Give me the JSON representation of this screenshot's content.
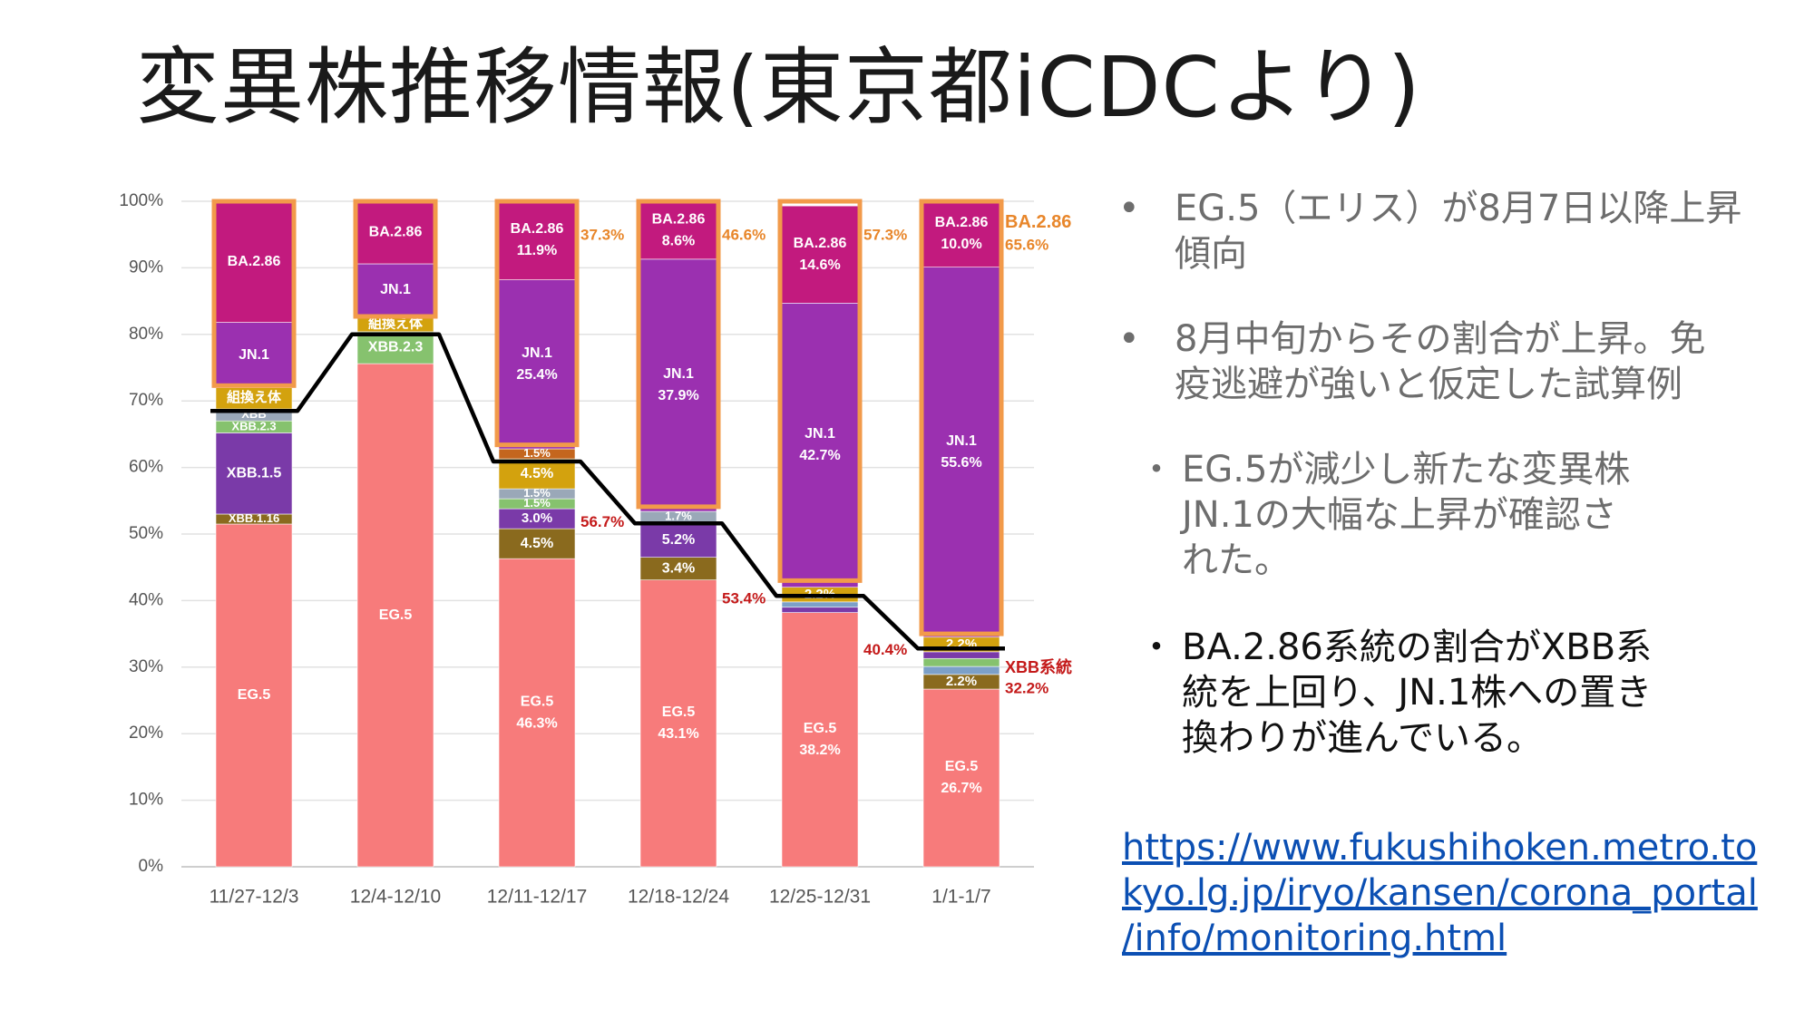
{
  "slide": {
    "title": "変異株推移情報(東京都iCDCより)"
  },
  "notes": {
    "bullet1": [
      "EG.5（エリス）が8月7日以降上昇",
      "傾向"
    ],
    "bullet2": [
      "8月中旬からその割合が上昇。免",
      "疫逃避が強いと仮定した試算例"
    ],
    "point1": [
      "EG.5が減少し新たな変異株",
      " JN.1の大幅な上昇が確認さ",
      "れた。"
    ],
    "point2": [
      "BA.2.86系統の割合がXBB系",
      "統を上回り、JN.1株への置き",
      "換わりが進んでいる。"
    ],
    "bullet_char": "•",
    "point_char": "・"
  },
  "source_url": [
    "https://www.fukushihoken.metro.to",
    "kyo.lg.jp/iryo/kansen/corona_portal",
    "/info/monitoring.html"
  ],
  "chart_data": {
    "type": "bar",
    "stacked": true,
    "categories": [
      "11/27-12/3",
      "12/4-12/10",
      "12/11-12/17",
      "12/18-12/24",
      "12/25-12/31",
      "1/1-1/7"
    ],
    "y_ticks": [
      "0%",
      "10%",
      "20%",
      "30%",
      "40%",
      "50%",
      "60%",
      "70%",
      "80%",
      "90%",
      "100%"
    ],
    "ylim": [
      0,
      100
    ],
    "colors": {
      "EG.5": "#f77b7b",
      "XBB.1.16": "#8a6a1e",
      "XBB.1.5": "#7a3aa8",
      "XBB.2.3": "#86c26e",
      "XBB": "#9aa8b8",
      "XBB-other": "#7ca0c8",
      "組換え体": "#d3a20e",
      "組換え体-2": "#c4661e",
      "JN.1": "#9b30b0",
      "BA.2.86": "#c21a7e",
      "highlight": "#f29a4a",
      "trend": "#000000"
    },
    "bars": [
      {
        "segments": [
          {
            "name": "EG.5",
            "value": 51.5,
            "label": "EG.5"
          },
          {
            "name": "XBB.1.16",
            "value": 1.5,
            "label": "XBB.1.16"
          },
          {
            "name": "XBB.1.5",
            "value": 12.2,
            "label": "XBB.1.5"
          },
          {
            "name": "XBB.2.3",
            "value": 1.8,
            "label": "XBB.2.3"
          },
          {
            "name": "XBB",
            "value": 1.8,
            "label": "XBB"
          },
          {
            "name": "組換え体",
            "value": 3.2,
            "label": "組換え体"
          },
          {
            "name": "JN.1",
            "value": 9.8,
            "label": "JN.1"
          },
          {
            "name": "BA.2.86",
            "value": 18.2,
            "label": "BA.2.86"
          }
        ]
      },
      {
        "segments": [
          {
            "name": "EG.5",
            "value": 75.6,
            "label": "EG.5"
          },
          {
            "name": "XBB.2.3",
            "value": 4.8,
            "label": "XBB.2.3"
          },
          {
            "name": "組換え体",
            "value": 2.3,
            "label": "組換え体"
          },
          {
            "name": "JN.1",
            "value": 7.9,
            "label": "JN.1"
          },
          {
            "name": "BA.2.86",
            "value": 9.4,
            "label": "BA.2.86"
          }
        ]
      },
      {
        "segments": [
          {
            "name": "EG.5",
            "value": 46.3,
            "label": "EG.5",
            "label2": "46.3%"
          },
          {
            "name": "XBB.1.16",
            "value": 4.5,
            "label": "4.5%"
          },
          {
            "name": "XBB.1.5",
            "value": 3.0,
            "label": "3.0%"
          },
          {
            "name": "XBB.2.3",
            "value": 1.5,
            "label": "1.5%"
          },
          {
            "name": "XBB",
            "value": 1.5,
            "label": "1.5%"
          },
          {
            "name": "組換え体",
            "value": 4.5,
            "label": "4.5%"
          },
          {
            "name": "組換え体-2",
            "value": 1.5,
            "label": "1.5%"
          },
          {
            "name": "JN.1",
            "value": 25.4,
            "label": "JN.1",
            "label2": "25.4%"
          },
          {
            "name": "BA.2.86",
            "value": 11.9,
            "label": "BA.2.86",
            "label2": "11.9%"
          }
        ]
      },
      {
        "segments": [
          {
            "name": "EG.5",
            "value": 43.1,
            "label": "EG.5",
            "label2": "43.1%"
          },
          {
            "name": "XBB.1.16",
            "value": 3.4,
            "label": "3.4%"
          },
          {
            "name": "XBB.1.5",
            "value": 5.2,
            "label": "5.2%"
          },
          {
            "name": "XBB",
            "value": 1.7,
            "label": "1.7%"
          },
          {
            "name": "JN.1",
            "value": 37.9,
            "label": "JN.1",
            "label2": "37.9%"
          },
          {
            "name": "BA.2.86",
            "value": 8.6,
            "label": "BA.2.86",
            "label2": "8.6%"
          }
        ]
      },
      {
        "segments": [
          {
            "name": "EG.5",
            "value": 38.2,
            "label": "EG.5",
            "label2": "38.2%"
          },
          {
            "name": "XBB.1.5",
            "value": 0.8,
            "label": ""
          },
          {
            "name": "XBB-other",
            "value": 0.8,
            "label": ""
          },
          {
            "name": "組換え体",
            "value": 2.2,
            "label": "2.2%"
          },
          {
            "name": "JN.1",
            "value": 42.7,
            "label": "JN.1",
            "label2": "42.7%"
          },
          {
            "name": "BA.2.86",
            "value": 14.6,
            "label": "BA.2.86",
            "label2": "14.6%"
          }
        ]
      },
      {
        "segments": [
          {
            "name": "EG.5",
            "value": 26.7,
            "label": "EG.5",
            "label2": "26.7%"
          },
          {
            "name": "XBB.1.16",
            "value": 2.2,
            "label": "2.2%"
          },
          {
            "name": "XBB-other",
            "value": 1.2,
            "label": ""
          },
          {
            "name": "XBB.2.3",
            "value": 1.2,
            "label": ""
          },
          {
            "name": "XBB.1.5",
            "value": 1.0,
            "label": ""
          },
          {
            "name": "組換え体",
            "value": 2.2,
            "label": "2.2%"
          },
          {
            "name": "JN.1",
            "value": 55.6,
            "label": "JN.1",
            "label2": "55.6%"
          },
          {
            "name": "BA.2.86",
            "value": 10.0,
            "label": "BA.2.86",
            "label2": "10.0%"
          }
        ]
      }
    ],
    "highlight_from": [
      72.3,
      82.7,
      63.4,
      54.1,
      43.0,
      35.0
    ],
    "trend_line": [
      68.5,
      80.0,
      60.9,
      51.6,
      40.7,
      32.8
    ],
    "annotations": {
      "orange": [
        "37.3%",
        "46.6%",
        "57.3%",
        "BA.2.86",
        "65.6%"
      ],
      "red": [
        "56.7%",
        "53.4%",
        "40.4%",
        "XBB系統",
        "32.2%"
      ]
    }
  }
}
